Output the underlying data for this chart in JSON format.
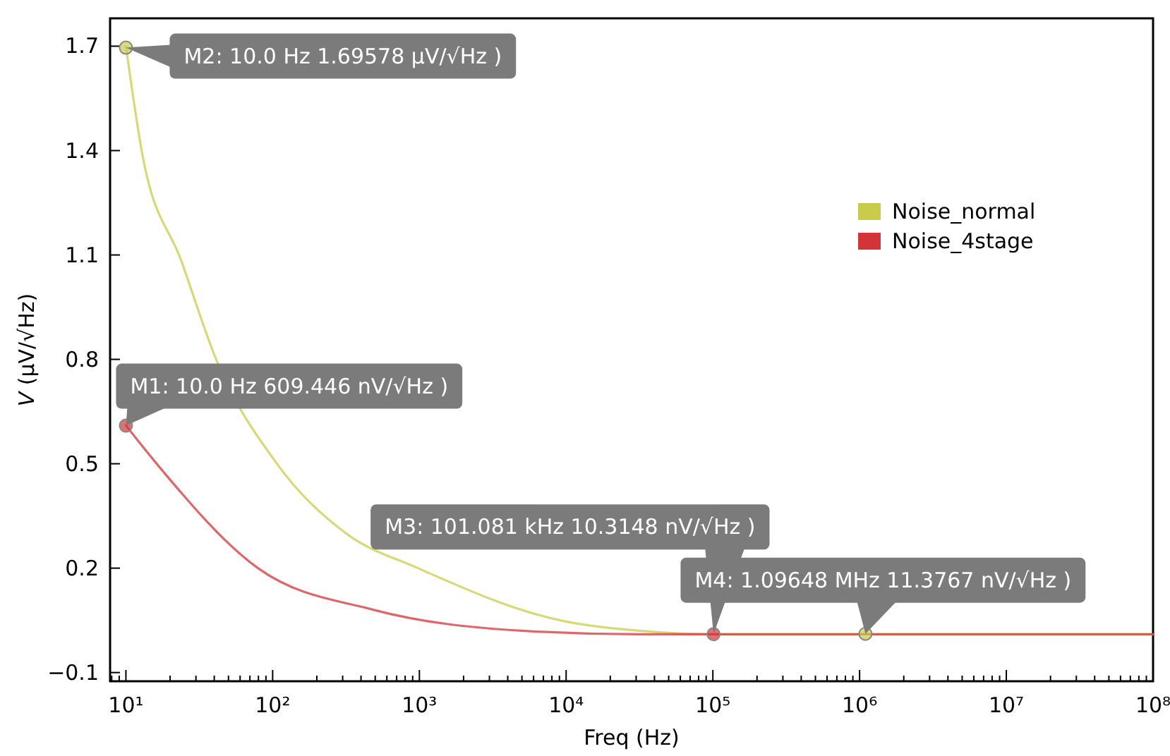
{
  "chart_data": {
    "type": "line",
    "xlabel": "Freq (Hz)",
    "ylabel": "V (µV/√Hz)",
    "log": "x",
    "grid": false,
    "legend": "right",
    "marker": "none",
    "line_style": "solid",
    "xlim": [
      7.8,
      100000000
    ],
    "ylim": [
      -0.125,
      1.78
    ],
    "xticks": [
      {
        "value": 10,
        "label": "10¹"
      },
      {
        "value": 100,
        "label": "10²"
      },
      {
        "value": 1000,
        "label": "10³"
      },
      {
        "value": 10000,
        "label": "10⁴"
      },
      {
        "value": 100000,
        "label": "10⁵"
      },
      {
        "value": 1000000,
        "label": "10⁶"
      },
      {
        "value": 10000000,
        "label": "10⁷"
      },
      {
        "value": 100000000,
        "label": "10⁸"
      }
    ],
    "yticks": [
      -0.1,
      0.2,
      0.5,
      0.8,
      1.1,
      1.4,
      1.7
    ],
    "series": [
      {
        "name": "Noise_normal",
        "color": "#c9cc4a",
        "x": [
          10,
          12.8,
          24,
          41.2,
          107,
          316,
          977,
          9120,
          31623,
          100000,
          1000000,
          1096480,
          10000000,
          100000000
        ],
        "values": [
          1.7,
          1.4,
          1.08,
          0.8,
          0.5,
          0.3,
          0.2,
          0.05,
          0.02,
          0.01,
          0.01,
          0.01,
          0.01,
          0.01
        ]
      },
      {
        "name": "Noise_4stage",
        "color": "#d2343a",
        "x": [
          10,
          16.2,
          79.4,
          490,
          5012,
          31623,
          101081,
          1000000,
          100000000
        ],
        "values": [
          0.61,
          0.5,
          0.2,
          0.08,
          0.02,
          0.01,
          0.01,
          0.01,
          0.01
        ]
      }
    ],
    "annotations": [
      {
        "text": "M2: 10.0 Hz 1.69578 µV/√Hz )",
        "x": 10,
        "y": 1.69578
      },
      {
        "text": "M1: 10.0 Hz 609.446 nV/√Hz )",
        "x": 10,
        "y": 0.609446
      },
      {
        "text": "M3: 101.081 kHz 10.3148 nV/√Hz )",
        "x": 101081,
        "y": 0.0103148
      },
      {
        "text": "M4: 1.09648 MHz 11.3767 nV/√Hz )",
        "x": 1096480,
        "y": 0.0113767
      }
    ]
  }
}
